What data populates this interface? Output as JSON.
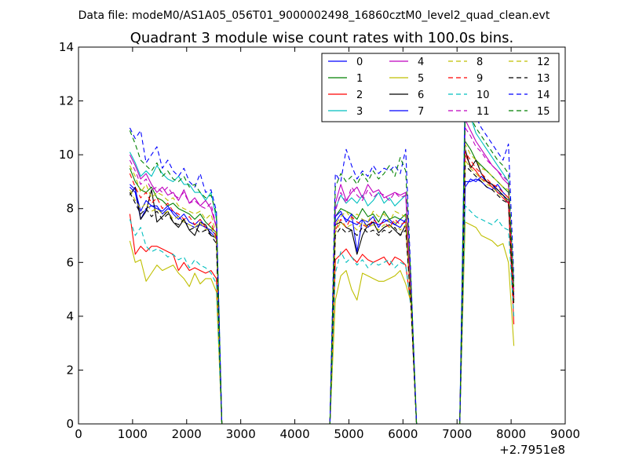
{
  "chart_data": {
    "type": "line",
    "suptitle": "Data file: modeM0/AS1A05_056T01_9000002498_16860cztM0_level2_quad_clean.evt",
    "title": "Quadrant 3 module wise count rates with 100.0s bins.",
    "xlabel": "",
    "ylabel": "",
    "x_offset_label": "+2.7951e8",
    "xlim": [
      0,
      9000
    ],
    "ylim": [
      0,
      14
    ],
    "x_ticks": [
      0,
      1000,
      2000,
      3000,
      4000,
      5000,
      6000,
      7000,
      8000,
      9000
    ],
    "y_ticks": [
      0,
      2,
      4,
      6,
      8,
      10,
      12,
      14
    ],
    "grid": false,
    "legend_position": "top-right",
    "legend_columns": 4,
    "x": [
      950,
      1050,
      1150,
      1250,
      1350,
      1450,
      1550,
      1650,
      1750,
      1850,
      1950,
      2050,
      2150,
      2250,
      2350,
      2450,
      2550,
      2650,
      2750,
      2850,
      2950,
      3050,
      3150,
      3250,
      3350,
      3450,
      3550,
      3650,
      3750,
      3850,
      3950,
      4050,
      4150,
      4250,
      4350,
      4450,
      4550,
      4650,
      4750,
      4850,
      4950,
      5050,
      5150,
      5250,
      5350,
      5450,
      5550,
      5650,
      5750,
      5850,
      5950,
      6050,
      6150,
      6250,
      6350,
      6450,
      6550,
      6650,
      6750,
      6850,
      6950,
      7050,
      7150,
      7250,
      7350,
      7450,
      7550,
      7650,
      7750,
      7850,
      7950,
      8050
    ],
    "series": [
      {
        "name": "0",
        "color": "#0000ff",
        "dash": "solid",
        "values": [
          8.8,
          8.6,
          7.6,
          8.0,
          8.1,
          8.1,
          7.8,
          8.0,
          7.9,
          7.7,
          7.5,
          7.4,
          7.3,
          7.4,
          7.3,
          7.1,
          6.9,
          0,
          0,
          0,
          0,
          0,
          0,
          0,
          0,
          0,
          0,
          0,
          0,
          0,
          0,
          0,
          0,
          0,
          0,
          0,
          0,
          0,
          7.5,
          7.8,
          7.6,
          7.5,
          7.4,
          7.6,
          7.3,
          7.5,
          7.4,
          7.5,
          7.6,
          7.4,
          7.3,
          7.6,
          4.4,
          0,
          0,
          0,
          0,
          0,
          0,
          0,
          0,
          0,
          8.8,
          9.1,
          9.0,
          9.2,
          9.0,
          8.9,
          8.6,
          8.5,
          8.2,
          4.8
        ]
      },
      {
        "name": "1",
        "color": "#008000",
        "dash": "solid",
        "values": [
          9.5,
          9.0,
          8.7,
          8.6,
          8.8,
          8.4,
          8.3,
          8.1,
          8.2,
          8.0,
          7.9,
          7.8,
          7.6,
          7.8,
          7.5,
          7.3,
          7.1,
          0,
          0,
          0,
          0,
          0,
          0,
          0,
          0,
          0,
          0,
          0,
          0,
          0,
          0,
          0,
          0,
          0,
          0,
          0,
          0,
          0,
          7.7,
          8.0,
          7.9,
          7.8,
          7.6,
          8.0,
          7.7,
          7.8,
          7.5,
          7.9,
          7.6,
          7.7,
          7.6,
          7.8,
          4.6,
          0,
          0,
          0,
          0,
          0,
          0,
          0,
          0,
          0,
          10.5,
          10.2,
          9.8,
          9.6,
          9.4,
          9.2,
          9.0,
          8.8,
          8.6,
          5.0
        ]
      },
      {
        "name": "2",
        "color": "#ff0000",
        "dash": "solid",
        "values": [
          7.8,
          6.3,
          6.6,
          6.4,
          6.6,
          6.6,
          6.5,
          6.4,
          6.3,
          5.7,
          6.0,
          5.7,
          5.8,
          5.7,
          5.6,
          5.7,
          5.4,
          0,
          0,
          0,
          0,
          0,
          0,
          0,
          0,
          0,
          0,
          0,
          0,
          0,
          0,
          0,
          0,
          0,
          0,
          0,
          0,
          0,
          6.1,
          6.3,
          6.5,
          6.2,
          6.0,
          6.3,
          6.1,
          6.0,
          6.1,
          6.2,
          5.9,
          6.2,
          6.1,
          5.9,
          4.4,
          0,
          0,
          0,
          0,
          0,
          0,
          0,
          0,
          0,
          10.0,
          9.6,
          9.4,
          9.1,
          9.0,
          8.8,
          8.6,
          8.4,
          8.2,
          3.7
        ]
      },
      {
        "name": "3",
        "color": "#00bfbf",
        "dash": "solid",
        "values": [
          10.1,
          9.7,
          9.2,
          9.4,
          9.2,
          9.6,
          9.3,
          9.1,
          9.0,
          9.2,
          8.9,
          8.9,
          8.6,
          8.6,
          8.3,
          8.6,
          7.6,
          0,
          0,
          0,
          0,
          0,
          0,
          0,
          0,
          0,
          0,
          0,
          0,
          0,
          0,
          0,
          0,
          0,
          0,
          0,
          0,
          0,
          8.0,
          8.5,
          8.2,
          8.4,
          8.2,
          8.5,
          8.1,
          8.3,
          8.6,
          8.2,
          8.4,
          8.1,
          8.3,
          8.5,
          5.0,
          0,
          0,
          0,
          0,
          0,
          0,
          0,
          0,
          0,
          12.7,
          11.4,
          10.8,
          10.5,
          10.2,
          9.9,
          9.6,
          9.3,
          9.0,
          5.2
        ]
      },
      {
        "name": "4",
        "color": "#bf00bf",
        "dash": "solid",
        "values": [
          10.0,
          9.6,
          9.1,
          9.3,
          8.9,
          8.6,
          8.8,
          8.5,
          8.6,
          8.3,
          8.7,
          8.2,
          8.4,
          8.1,
          8.3,
          8.0,
          7.3,
          0,
          0,
          0,
          0,
          0,
          0,
          0,
          0,
          0,
          0,
          0,
          0,
          0,
          0,
          0,
          0,
          0,
          0,
          0,
          0,
          0,
          8.2,
          8.9,
          8.3,
          8.6,
          8.8,
          8.4,
          8.9,
          8.6,
          8.7,
          8.4,
          8.5,
          8.6,
          8.5,
          8.6,
          4.8,
          0,
          0,
          0,
          0,
          0,
          0,
          0,
          0,
          0,
          11.3,
          10.9,
          10.5,
          10.2,
          9.9,
          9.6,
          9.4,
          9.1,
          8.9,
          4.9
        ]
      },
      {
        "name": "5",
        "color": "#bfbf00",
        "dash": "solid",
        "values": [
          6.8,
          6.0,
          6.1,
          5.3,
          5.6,
          5.9,
          5.7,
          5.8,
          5.9,
          5.6,
          5.4,
          5.1,
          5.6,
          5.2,
          5.4,
          5.4,
          4.9,
          0,
          0,
          0,
          0,
          0,
          0,
          0,
          0,
          0,
          0,
          0,
          0,
          0,
          0,
          0,
          0,
          0,
          0,
          0,
          0,
          0,
          4.6,
          5.5,
          5.7,
          5.0,
          4.6,
          5.6,
          5.5,
          5.4,
          5.3,
          5.3,
          5.4,
          5.5,
          5.7,
          5.2,
          4.5,
          0,
          0,
          0,
          0,
          0,
          0,
          0,
          0,
          0,
          7.5,
          7.4,
          7.3,
          7.0,
          6.9,
          6.8,
          6.6,
          6.7,
          6.0,
          2.9
        ]
      },
      {
        "name": "6",
        "color": "#000000",
        "dash": "solid",
        "values": [
          8.5,
          8.8,
          7.6,
          7.9,
          8.7,
          7.5,
          7.7,
          7.9,
          7.5,
          7.3,
          7.6,
          7.2,
          7.0,
          7.5,
          7.4,
          7.0,
          6.9,
          0,
          0,
          0,
          0,
          0,
          0,
          0,
          0,
          0,
          0,
          0,
          0,
          0,
          0,
          0,
          0,
          0,
          0,
          0,
          0,
          0,
          7.4,
          7.5,
          7.3,
          7.2,
          6.3,
          7.0,
          7.4,
          7.5,
          7.1,
          7.3,
          7.4,
          7.2,
          7.0,
          7.4,
          4.4,
          0,
          0,
          0,
          0,
          0,
          0,
          0,
          0,
          0,
          10.2,
          9.5,
          9.8,
          9.3,
          9.0,
          8.9,
          8.7,
          8.5,
          8.3,
          4.6
        ]
      },
      {
        "name": "7",
        "color": "#0000ff",
        "dash": "solid",
        "values": [
          8.9,
          8.7,
          7.9,
          8.3,
          8.1,
          8.0,
          7.9,
          8.1,
          7.8,
          7.6,
          7.8,
          7.5,
          7.4,
          7.6,
          7.3,
          7.2,
          7.0,
          0,
          0,
          0,
          0,
          0,
          0,
          0,
          0,
          0,
          0,
          0,
          0,
          0,
          0,
          0,
          0,
          0,
          0,
          0,
          0,
          0,
          7.7,
          7.9,
          7.5,
          7.8,
          6.4,
          7.6,
          7.5,
          7.7,
          7.3,
          7.6,
          7.5,
          7.4,
          7.6,
          7.5,
          4.5,
          0,
          0,
          0,
          0,
          0,
          0,
          0,
          0,
          0,
          9.0,
          9.0,
          9.1,
          9.0,
          8.8,
          8.7,
          8.9,
          8.6,
          8.4,
          4.7
        ]
      },
      {
        "name": "8",
        "color": "#bfbf00",
        "dash": "dashed",
        "values": [
          9.6,
          9.2,
          8.6,
          8.9,
          8.4,
          8.6,
          8.5,
          8.3,
          8.4,
          8.1,
          8.0,
          7.9,
          7.8,
          7.9,
          7.6,
          7.8,
          7.0,
          0,
          0,
          0,
          0,
          0,
          0,
          0,
          0,
          0,
          0,
          0,
          0,
          0,
          0,
          0,
          0,
          0,
          0,
          0,
          0,
          0,
          7.4,
          7.7,
          7.9,
          7.6,
          7.8,
          7.6,
          7.5,
          7.9,
          7.7,
          7.8,
          7.5,
          7.9,
          7.8,
          7.7,
          4.6,
          0,
          0,
          0,
          0,
          0,
          0,
          0,
          0,
          0,
          10.4,
          10.0,
          9.8,
          9.5,
          9.4,
          9.2,
          9.0,
          8.8,
          8.7,
          4.9
        ]
      },
      {
        "name": "9",
        "color": "#ff0000",
        "dash": "dashed",
        "values": [
          9.3,
          8.8,
          8.4,
          8.6,
          8.2,
          8.4,
          8.0,
          8.2,
          7.9,
          7.8,
          7.6,
          7.7,
          7.4,
          7.6,
          7.3,
          7.5,
          6.9,
          0,
          0,
          0,
          0,
          0,
          0,
          0,
          0,
          0,
          0,
          0,
          0,
          0,
          0,
          0,
          0,
          0,
          0,
          0,
          0,
          0,
          7.2,
          7.6,
          7.3,
          7.7,
          7.5,
          7.4,
          7.3,
          7.6,
          7.4,
          7.5,
          7.3,
          7.6,
          7.4,
          7.5,
          4.4,
          0,
          0,
          0,
          0,
          0,
          0,
          0,
          0,
          0,
          10.1,
          9.8,
          9.5,
          9.3,
          9.1,
          8.9,
          8.8,
          8.6,
          8.4,
          4.6
        ]
      },
      {
        "name": "10",
        "color": "#00bfbf",
        "dash": "dashed",
        "values": [
          7.6,
          7.0,
          7.3,
          6.6,
          6.4,
          6.5,
          6.4,
          6.2,
          6.3,
          6.1,
          6.2,
          5.8,
          6.1,
          5.9,
          5.8,
          5.6,
          5.2,
          0,
          0,
          0,
          0,
          0,
          0,
          0,
          0,
          0,
          0,
          0,
          0,
          0,
          0,
          0,
          0,
          0,
          0,
          0,
          0,
          0,
          5.6,
          6.4,
          6.0,
          6.2,
          5.9,
          6.1,
          5.8,
          6.0,
          5.9,
          6.0,
          6.1,
          5.8,
          6.0,
          5.9,
          4.3,
          0,
          0,
          0,
          0,
          0,
          0,
          0,
          0,
          0,
          8.1,
          7.9,
          7.7,
          7.6,
          7.5,
          7.4,
          7.6,
          7.3,
          7.2,
          4.0
        ]
      },
      {
        "name": "11",
        "color": "#bf00bf",
        "dash": "dashed",
        "values": [
          9.8,
          9.4,
          8.9,
          9.1,
          8.7,
          8.8,
          8.6,
          8.8,
          8.5,
          8.4,
          8.6,
          8.2,
          8.3,
          8.1,
          8.0,
          8.2,
          7.3,
          0,
          0,
          0,
          0,
          0,
          0,
          0,
          0,
          0,
          0,
          0,
          0,
          0,
          0,
          0,
          0,
          0,
          0,
          0,
          0,
          0,
          7.9,
          8.6,
          8.2,
          8.8,
          8.5,
          8.3,
          8.7,
          8.4,
          8.6,
          8.5,
          8.3,
          8.6,
          8.4,
          8.5,
          4.8,
          0,
          0,
          0,
          0,
          0,
          0,
          0,
          0,
          0,
          11.0,
          10.7,
          10.3,
          10.1,
          9.8,
          9.6,
          9.4,
          9.2,
          9.0,
          4.9
        ]
      },
      {
        "name": "12",
        "color": "#bfbf00",
        "dash": "dashed",
        "values": [
          8.7,
          8.3,
          8.0,
          8.2,
          7.9,
          8.0,
          7.8,
          7.9,
          7.6,
          7.7,
          7.5,
          7.4,
          7.3,
          7.5,
          7.2,
          7.3,
          6.8,
          0,
          0,
          0,
          0,
          0,
          0,
          0,
          0,
          0,
          0,
          0,
          0,
          0,
          0,
          0,
          0,
          0,
          0,
          0,
          0,
          0,
          7.1,
          7.5,
          7.3,
          7.4,
          7.2,
          7.5,
          7.3,
          7.4,
          7.2,
          7.4,
          7.3,
          7.5,
          7.2,
          7.4,
          4.4,
          0,
          0,
          0,
          0,
          0,
          0,
          0,
          0,
          0,
          9.8,
          9.5,
          9.3,
          9.1,
          8.9,
          8.8,
          8.6,
          8.4,
          8.3,
          4.5
        ]
      },
      {
        "name": "13",
        "color": "#000000",
        "dash": "dashed",
        "values": [
          8.6,
          8.2,
          7.8,
          8.0,
          7.7,
          7.9,
          7.6,
          7.8,
          7.5,
          7.4,
          7.6,
          7.2,
          7.3,
          7.1,
          7.2,
          7.0,
          6.7,
          0,
          0,
          0,
          0,
          0,
          0,
          0,
          0,
          0,
          0,
          0,
          0,
          0,
          0,
          0,
          0,
          0,
          0,
          0,
          0,
          0,
          7.0,
          7.3,
          7.1,
          7.2,
          7.0,
          7.3,
          7.1,
          7.2,
          7.0,
          7.2,
          7.1,
          7.3,
          7.0,
          7.2,
          4.3,
          0,
          0,
          0,
          0,
          0,
          0,
          0,
          0,
          0,
          9.6,
          9.4,
          9.2,
          9.0,
          8.8,
          8.7,
          8.5,
          8.3,
          8.2,
          4.4
        ]
      },
      {
        "name": "14",
        "color": "#0000ff",
        "dash": "dashed",
        "values": [
          11.0,
          10.6,
          10.9,
          9.7,
          10.0,
          10.3,
          9.5,
          9.8,
          9.4,
          9.2,
          9.5,
          9.0,
          8.8,
          9.3,
          8.6,
          8.7,
          7.9,
          0,
          0,
          0,
          0,
          0,
          0,
          0,
          0,
          0,
          0,
          0,
          0,
          0,
          0,
          0,
          0,
          0,
          0,
          0,
          0,
          0,
          9.3,
          9.0,
          10.2,
          9.6,
          9.1,
          9.4,
          9.2,
          9.6,
          9.3,
          9.5,
          9.4,
          9.6,
          9.3,
          10.2,
          5.3,
          0,
          0,
          0,
          0,
          0,
          0,
          0,
          0,
          0,
          12.2,
          11.7,
          11.4,
          11.0,
          10.7,
          10.4,
          10.1,
          9.8,
          10.4,
          5.4
        ]
      },
      {
        "name": "15",
        "color": "#008000",
        "dash": "dashed",
        "values": [
          10.9,
          10.4,
          9.8,
          9.6,
          9.4,
          9.7,
          9.2,
          9.4,
          9.1,
          9.0,
          9.2,
          8.8,
          8.9,
          8.6,
          8.4,
          8.5,
          7.8,
          0,
          0,
          0,
          0,
          0,
          0,
          0,
          0,
          0,
          0,
          0,
          0,
          0,
          0,
          0,
          0,
          0,
          0,
          0,
          0,
          0,
          8.8,
          9.3,
          9.0,
          9.2,
          8.9,
          9.3,
          9.0,
          9.4,
          9.1,
          9.3,
          9.6,
          9.2,
          9.9,
          9.4,
          5.2,
          0,
          0,
          0,
          0,
          0,
          0,
          0,
          0,
          0,
          11.8,
          11.4,
          11.0,
          10.7,
          10.4,
          10.1,
          9.8,
          9.6,
          9.3,
          5.1
        ]
      }
    ]
  }
}
